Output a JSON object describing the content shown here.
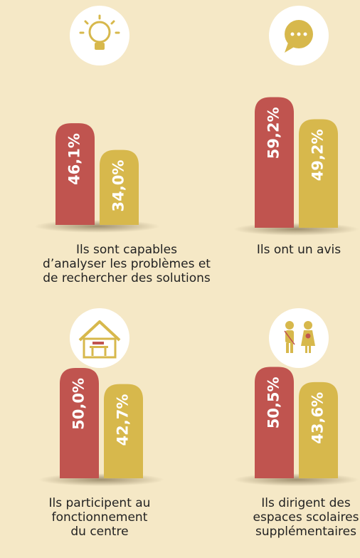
{
  "chart_data": [
    {
      "type": "bar",
      "title": [
        "Ils sont capables",
        "d’analyser les problèmes et",
        "de rechercher des solutions"
      ],
      "values": [
        46.1,
        34.0
      ],
      "value_labels": [
        "46,1%",
        "34,0%"
      ],
      "colors": [
        "#c0544f",
        "#d7b84c"
      ]
    },
    {
      "type": "bar",
      "title": [
        "Ils ont un avis"
      ],
      "values": [
        59.2,
        49.2
      ],
      "value_labels": [
        "59,2%",
        "49,2%"
      ],
      "colors": [
        "#c0544f",
        "#d7b84c"
      ]
    },
    {
      "type": "bar",
      "title": [
        "Ils participent au",
        "fonctionnement",
        "du centre"
      ],
      "values": [
        50.0,
        42.7
      ],
      "value_labels": [
        "50,0%",
        "42,7%"
      ],
      "colors": [
        "#c0544f",
        "#d7b84c"
      ]
    },
    {
      "type": "bar",
      "title": [
        "Ils dirigent des",
        "espaces scolaires",
        "supplémentaires"
      ],
      "values": [
        50.5,
        43.6
      ],
      "value_labels": [
        "50,5%",
        "43,6%"
      ],
      "colors": [
        "#c0544f",
        "#d7b84c"
      ]
    }
  ]
}
